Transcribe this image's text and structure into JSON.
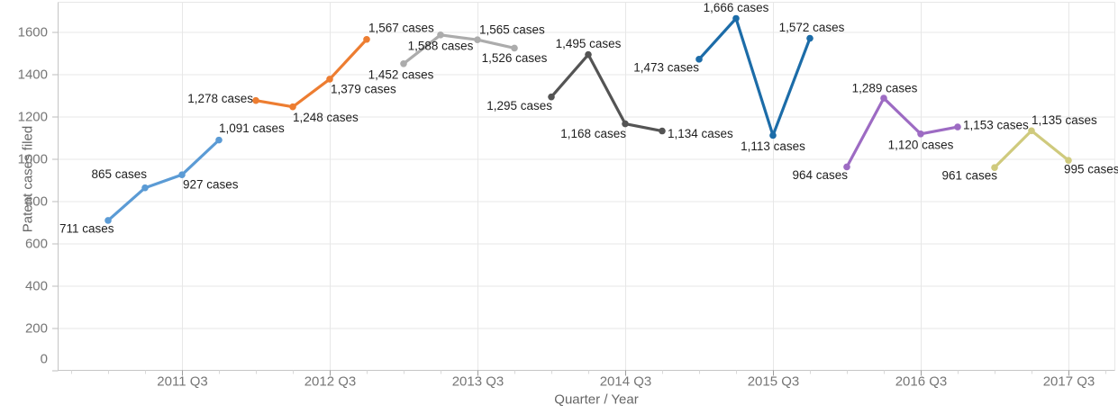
{
  "chart_data": {
    "type": "line",
    "title": "",
    "x_axis": {
      "title": "Quarter / Year",
      "ticks": [
        "2011 Q3",
        "2012 Q3",
        "2013 Q3",
        "2014 Q3",
        "2015 Q3",
        "2016 Q3",
        "2017 Q3"
      ]
    },
    "y_axis": {
      "title": "Patent cases filed",
      "ticks": [
        0,
        200,
        400,
        600,
        800,
        1000,
        1200,
        1400,
        1600
      ],
      "range": [
        0,
        1750
      ]
    },
    "grid": "on",
    "legend": "none",
    "series": [
      {
        "name": "2011",
        "color": "#5B9BD5",
        "points": [
          {
            "quarter": "2011 Q1",
            "value": 711,
            "label": "711 cases",
            "anchor": "start",
            "dx": -54,
            "dy": 9
          },
          {
            "quarter": "2011 Q2",
            "value": 865,
            "label": "865 cases",
            "anchor": "end",
            "dx": 2,
            "dy": -15
          },
          {
            "quarter": "2011 Q3",
            "value": 927,
            "label": "927 cases",
            "anchor": "start",
            "dx": 1,
            "dy": 11
          },
          {
            "quarter": "2011 Q4",
            "value": 1091,
            "label": "1,091 cases",
            "anchor": "start",
            "dx": 0,
            "dy": -13
          }
        ]
      },
      {
        "name": "2012",
        "color": "#ED7D31",
        "points": [
          {
            "quarter": "2012 Q1",
            "value": 1278,
            "label": "1,278 cases",
            "anchor": "end",
            "dx": -3,
            "dy": -2
          },
          {
            "quarter": "2012 Q2",
            "value": 1248,
            "label": "1,248 cases",
            "anchor": "start",
            "dx": 0,
            "dy": 12
          },
          {
            "quarter": "2012 Q3",
            "value": 1379,
            "label": "1,379 cases",
            "anchor": "start",
            "dx": 1,
            "dy": 11
          },
          {
            "quarter": "2012 Q4",
            "value": 1567,
            "label": "1,567 cases",
            "anchor": "start",
            "dx": 2,
            "dy": -13
          }
        ]
      },
      {
        "name": "2013",
        "color": "#ACACAC",
        "points": [
          {
            "quarter": "2013 Q1",
            "value": 1452,
            "label": "1,452 cases",
            "anchor": "middle",
            "dx": -3,
            "dy": 12
          },
          {
            "quarter": "2013 Q2",
            "value": 1588,
            "label": "1,588 cases",
            "anchor": "middle",
            "dx": 0,
            "dy": 12
          },
          {
            "quarter": "2013 Q3",
            "value": 1565,
            "label": "1,565 cases",
            "anchor": "start",
            "dx": 2,
            "dy": -11
          },
          {
            "quarter": "2013 Q4",
            "value": 1526,
            "label": "1,526 cases",
            "anchor": "middle",
            "dx": 0,
            "dy": 11
          }
        ]
      },
      {
        "name": "2014",
        "color": "#545454",
        "points": [
          {
            "quarter": "2014 Q1",
            "value": 1295,
            "label": "1,295 cases",
            "anchor": "end",
            "dx": 1,
            "dy": 10
          },
          {
            "quarter": "2014 Q2",
            "value": 1495,
            "label": "1,495 cases",
            "anchor": "middle",
            "dx": 0,
            "dy": -12
          },
          {
            "quarter": "2014 Q3",
            "value": 1168,
            "label": "1,168 cases",
            "anchor": "end",
            "dx": 1,
            "dy": 11
          },
          {
            "quarter": "2014 Q4",
            "value": 1134,
            "label": "1,134 cases",
            "anchor": "start",
            "dx": 6,
            "dy": 3
          }
        ]
      },
      {
        "name": "2015",
        "color": "#1C6CA8",
        "points": [
          {
            "quarter": "2015 Q1",
            "value": 1473,
            "label": "1,473 cases",
            "anchor": "end",
            "dx": 0,
            "dy": 9
          },
          {
            "quarter": "2015 Q2",
            "value": 1666,
            "label": "1,666 cases",
            "anchor": "middle",
            "dx": 0,
            "dy": -12
          },
          {
            "quarter": "2015 Q3",
            "value": 1113,
            "label": "1,113 cases",
            "anchor": "middle",
            "dx": 0,
            "dy": 12
          },
          {
            "quarter": "2015 Q4",
            "value": 1572,
            "label": "1,572 cases",
            "anchor": "middle",
            "dx": 2,
            "dy": -12
          }
        ]
      },
      {
        "name": "2016",
        "color": "#9D6BC3",
        "points": [
          {
            "quarter": "2016 Q1",
            "value": 964,
            "label": "964 cases",
            "anchor": "end",
            "dx": 1,
            "dy": 9
          },
          {
            "quarter": "2016 Q2",
            "value": 1289,
            "label": "1,289 cases",
            "anchor": "middle",
            "dx": 1,
            "dy": -11
          },
          {
            "quarter": "2016 Q3",
            "value": 1120,
            "label": "1,120 cases",
            "anchor": "middle",
            "dx": 0,
            "dy": 12
          },
          {
            "quarter": "2016 Q4",
            "value": 1153,
            "label": "1,153 cases",
            "anchor": "start",
            "dx": 6,
            "dy": -2
          }
        ]
      },
      {
        "name": "2017",
        "color": "#CFCA7D",
        "points": [
          {
            "quarter": "2017 Q1",
            "value": 961,
            "label": "961 cases",
            "anchor": "end",
            "dx": 3,
            "dy": 9
          },
          {
            "quarter": "2017 Q2",
            "value": 1135,
            "label": "1,135 cases",
            "anchor": "start",
            "dx": 0,
            "dy": -12
          },
          {
            "quarter": "2017 Q3",
            "value": 995,
            "label": "995 cases",
            "anchor": "start",
            "dx": -5,
            "dy": 10
          }
        ]
      }
    ]
  }
}
